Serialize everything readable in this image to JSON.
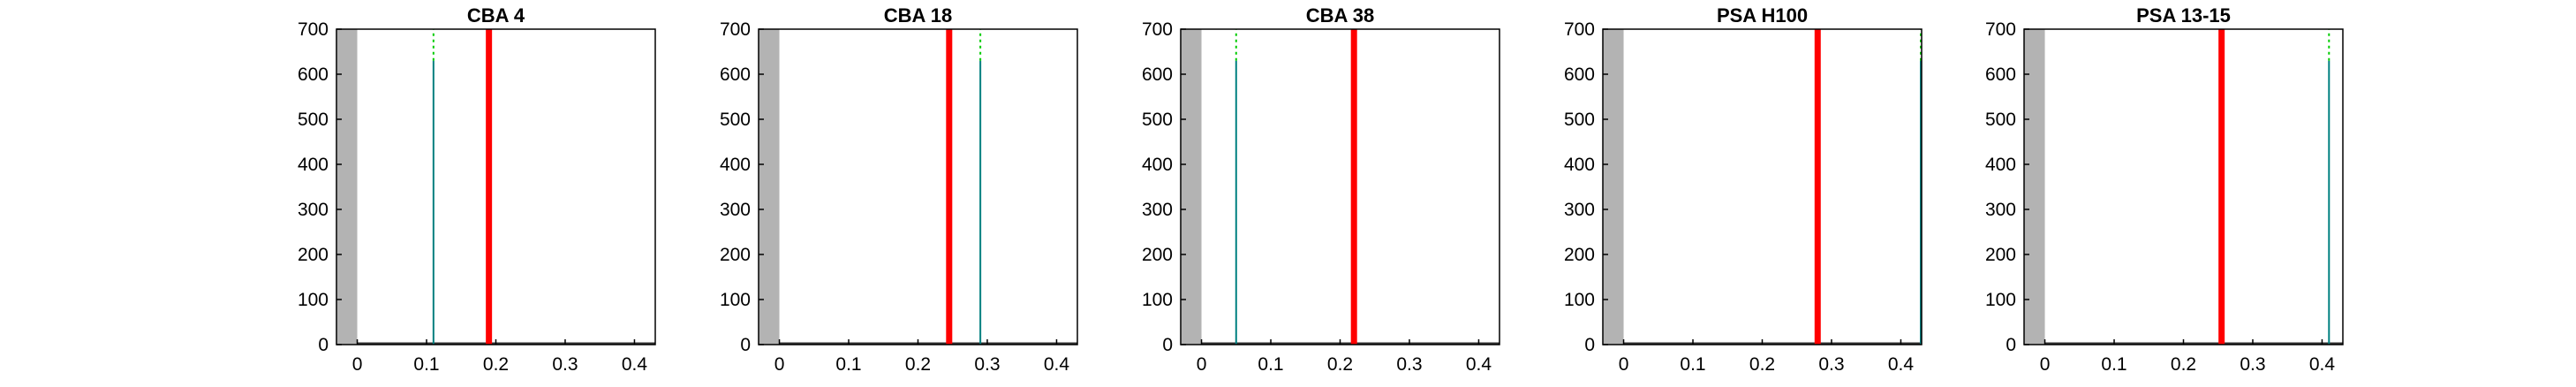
{
  "figure": {
    "colors": {
      "background": "#ffffff",
      "axis": "#000000",
      "shaded_region": "#b3b3b3",
      "red_line": "#ff0000",
      "green_marker": "#00cc00",
      "teal_line": "#008080"
    }
  },
  "chart_data": [
    {
      "type": "histogram",
      "title": "CBA 4",
      "xlim": [
        -0.03,
        0.43
      ],
      "ylim": [
        0,
        700
      ],
      "xticks": [
        "0",
        "0.1",
        "0.2",
        "0.3",
        "0.4"
      ],
      "yticks": [
        "0",
        "100",
        "200",
        "300",
        "400",
        "500",
        "600",
        "700"
      ],
      "shaded_region": [
        -0.03,
        0.0
      ],
      "red_line_x": 0.19,
      "green_line_x": 0.11,
      "green_line_height": 630,
      "grid": false
    },
    {
      "type": "histogram",
      "title": "CBA 18",
      "xlim": [
        -0.03,
        0.43
      ],
      "ylim": [
        0,
        700
      ],
      "xticks": [
        "0",
        "0.1",
        "0.2",
        "0.3",
        "0.4"
      ],
      "yticks": [
        "0",
        "100",
        "200",
        "300",
        "400",
        "500",
        "600",
        "700"
      ],
      "shaded_region": [
        -0.03,
        0.0
      ],
      "red_line_x": 0.245,
      "green_line_x": 0.29,
      "green_line_height": 630,
      "grid": false
    },
    {
      "type": "histogram",
      "title": "CBA 38",
      "xlim": [
        -0.03,
        0.43
      ],
      "ylim": [
        0,
        700
      ],
      "xticks": [
        "0",
        "0.1",
        "0.2",
        "0.3",
        "0.4"
      ],
      "yticks": [
        "0",
        "100",
        "200",
        "300",
        "400",
        "500",
        "600",
        "700"
      ],
      "shaded_region": [
        -0.03,
        0.0
      ],
      "red_line_x": 0.22,
      "green_line_x": 0.05,
      "green_line_height": 630,
      "grid": false
    },
    {
      "type": "histogram",
      "title": "PSA H100",
      "xlim": [
        -0.03,
        0.43
      ],
      "ylim": [
        0,
        700
      ],
      "xticks": [
        "0",
        "0.1",
        "0.2",
        "0.3",
        "0.4"
      ],
      "yticks": [
        "0",
        "100",
        "200",
        "300",
        "400",
        "500",
        "600",
        "700"
      ],
      "shaded_region": [
        -0.03,
        0.0
      ],
      "red_line_x": 0.28,
      "green_line_x": 0.43,
      "green_line_height": 630,
      "grid": false
    },
    {
      "type": "histogram",
      "title": "PSA 13-15",
      "xlim": [
        -0.03,
        0.43
      ],
      "ylim": [
        0,
        700
      ],
      "xticks": [
        "0",
        "0.1",
        "0.2",
        "0.3",
        "0.4"
      ],
      "yticks": [
        "0",
        "100",
        "200",
        "300",
        "400",
        "500",
        "600",
        "700"
      ],
      "shaded_region": [
        -0.03,
        0.0
      ],
      "red_line_x": 0.255,
      "green_line_x": 0.41,
      "green_line_height": 630,
      "grid": false
    }
  ]
}
